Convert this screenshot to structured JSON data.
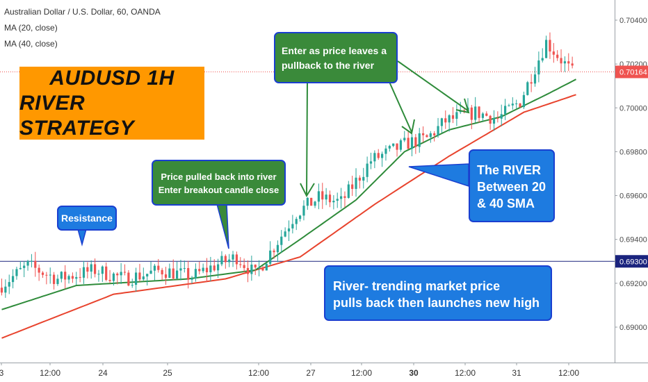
{
  "header": {
    "symbol_line": "Australian Dollar / U.S. Dollar, 60, OANDA",
    "ma20_label": "MA (20, close)",
    "ma40_label": "MA (40, close)"
  },
  "title": {
    "line1": "AUDUSD 1H",
    "line2": "RIVER STRATEGY"
  },
  "annotations": {
    "resistance": "Resistance",
    "pullback_line1": "Price pulled back into river",
    "pullback_line2": "Enter breakout candle close",
    "enter_line1": "Enter as price leaves a",
    "enter_line2": "pullback to the river",
    "river_line1": "The RIVER",
    "river_line2": "Between 20",
    "river_line3": "& 40 SMA",
    "trend_line1": "River- trending market price",
    "trend_line2": "pulls back then launches new high"
  },
  "colors": {
    "up_candle": "#26a69a",
    "down_candle": "#ef5350",
    "ma20": "#2e8b3a",
    "ma40": "#e8432d",
    "resistance_line": "#1a237e",
    "current_price_bg": "#ef5350",
    "resistance_price_bg": "#1a237e",
    "title_bg": "#ff9800",
    "green_callout": "#3a8a3a",
    "blue_callout": "#1e7be0"
  },
  "chart_data": {
    "type": "candlestick",
    "ylim": [
      0.6888,
      0.7052
    ],
    "y_ticks": [
      "0.70400",
      "0.70200",
      "0.70000",
      "0.69800",
      "0.69600",
      "0.69400",
      "0.69200",
      "0.69000"
    ],
    "x_ticks": [
      "3",
      "12:00",
      "24",
      "25",
      "12:00",
      "27",
      "12:00",
      "30",
      "12:00",
      "31",
      "12:00"
    ],
    "resistance_level": 0.693,
    "resistance_label": "0.69300",
    "current_price": 0.70164,
    "current_price_label": "0.70164",
    "bars": 154,
    "close_path": [
      [
        0,
        0.6918
      ],
      [
        8,
        0.6928
      ],
      [
        16,
        0.6922
      ],
      [
        26,
        0.6926
      ],
      [
        34,
        0.6922
      ],
      [
        44,
        0.6926
      ],
      [
        52,
        0.6923
      ],
      [
        58,
        0.6928
      ],
      [
        64,
        0.6932
      ],
      [
        69,
        0.6924
      ],
      [
        80,
        0.6952
      ],
      [
        86,
        0.6959
      ],
      [
        92,
        0.6957
      ],
      [
        100,
        0.6976
      ],
      [
        110,
        0.6984
      ],
      [
        115,
        0.6986
      ],
      [
        120,
        0.6994
      ],
      [
        128,
        0.6998
      ],
      [
        134,
        0.6995
      ],
      [
        140,
        0.7003
      ],
      [
        147,
        0.703
      ],
      [
        154,
        0.7016
      ]
    ],
    "ma20_path": [
      [
        0,
        0.6908
      ],
      [
        20,
        0.6919
      ],
      [
        50,
        0.6922
      ],
      [
        68,
        0.6926
      ],
      [
        80,
        0.694
      ],
      [
        95,
        0.6958
      ],
      [
        108,
        0.698
      ],
      [
        120,
        0.699
      ],
      [
        134,
        0.6996
      ],
      [
        146,
        0.7006
      ],
      [
        154,
        0.7013
      ]
    ],
    "ma40_path": [
      [
        0,
        0.6895
      ],
      [
        30,
        0.6915
      ],
      [
        60,
        0.6922
      ],
      [
        80,
        0.6932
      ],
      [
        100,
        0.6956
      ],
      [
        120,
        0.6978
      ],
      [
        140,
        0.6998
      ],
      [
        154,
        0.7006
      ]
    ]
  }
}
